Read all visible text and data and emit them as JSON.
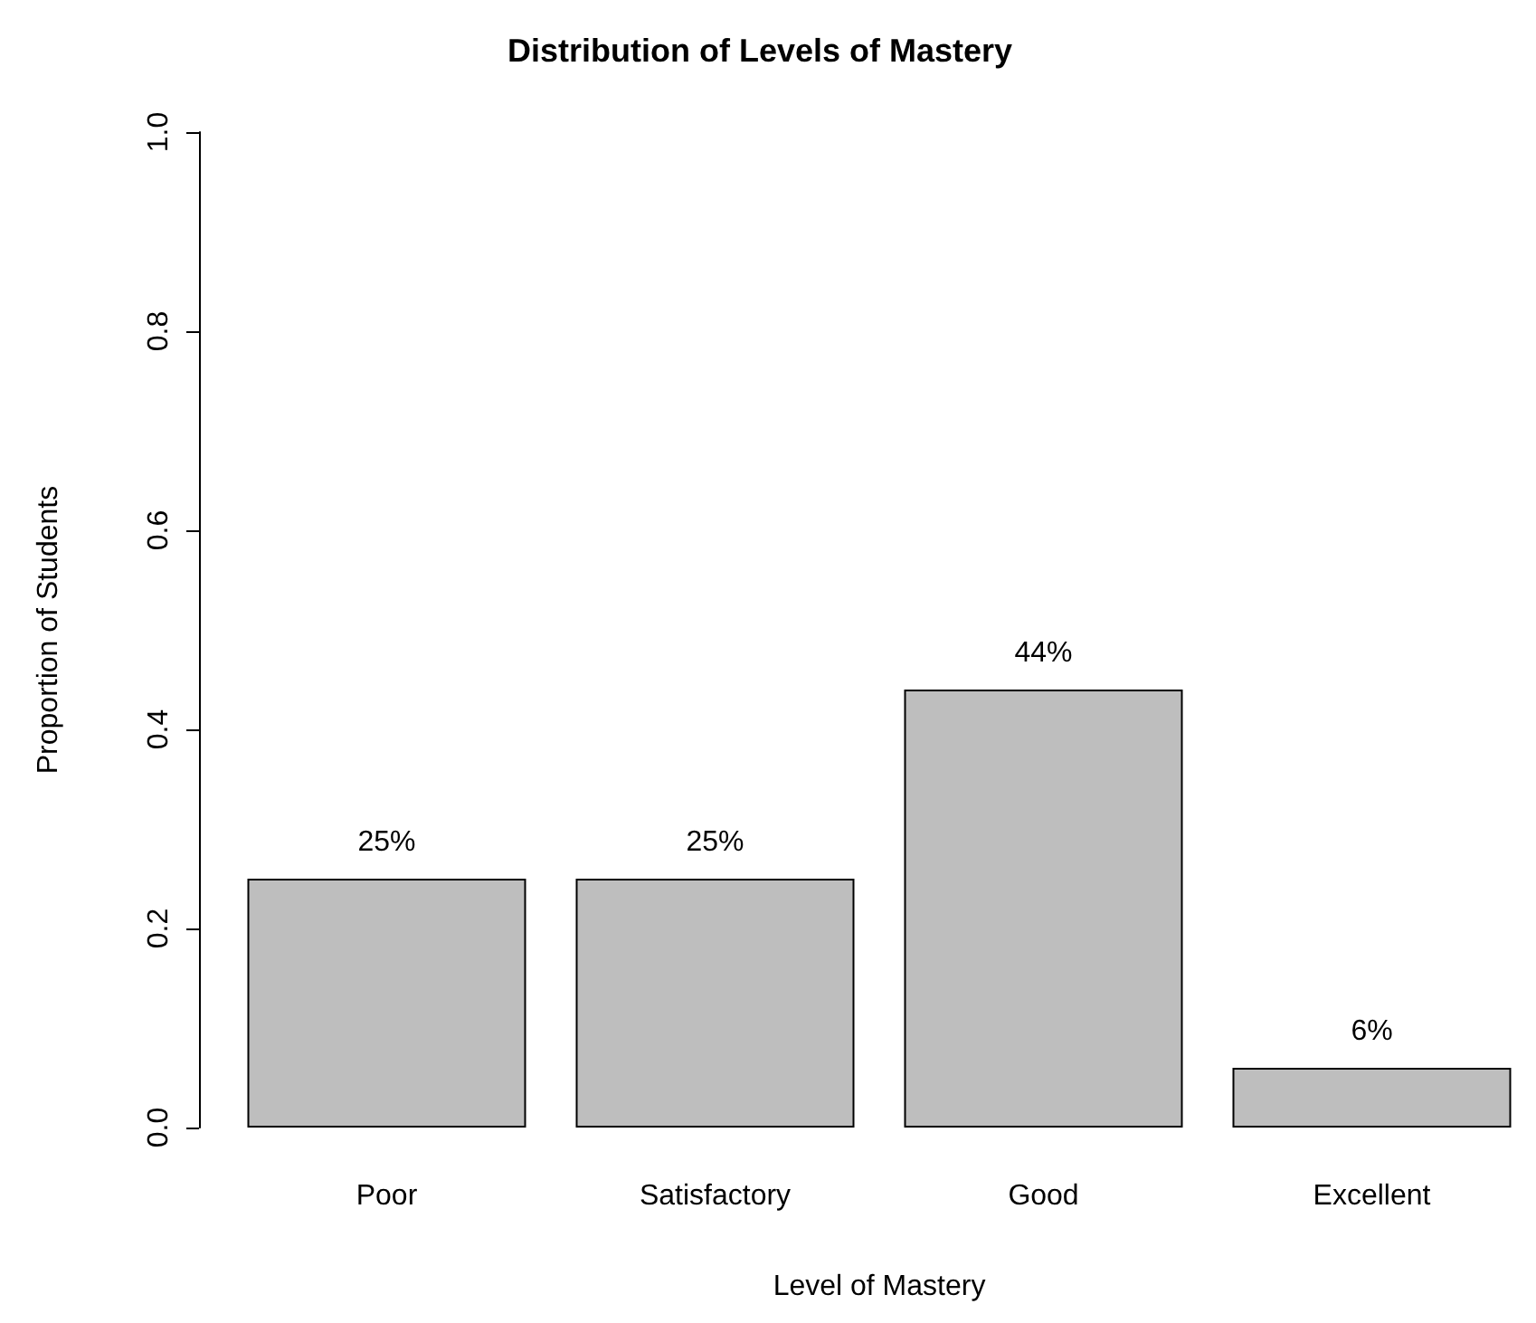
{
  "chart_data": {
    "type": "bar",
    "title": "Distribution of Levels of Mastery",
    "xlabel": "Level of Mastery",
    "ylabel": "Proportion of Students",
    "categories": [
      "Poor",
      "Satisfactory",
      "Good",
      "Excellent"
    ],
    "values": [
      0.25,
      0.25,
      0.44,
      0.06
    ],
    "value_labels": [
      "25%",
      "25%",
      "44%",
      "6%"
    ],
    "color": "#bebebe",
    "ylim": [
      0,
      1
    ],
    "yticks": [
      {
        "value": 0,
        "label": "0.0"
      },
      0.2,
      0.4,
      0.6,
      0.8,
      {
        "value": 1,
        "label": "1.0"
      }
    ]
  }
}
